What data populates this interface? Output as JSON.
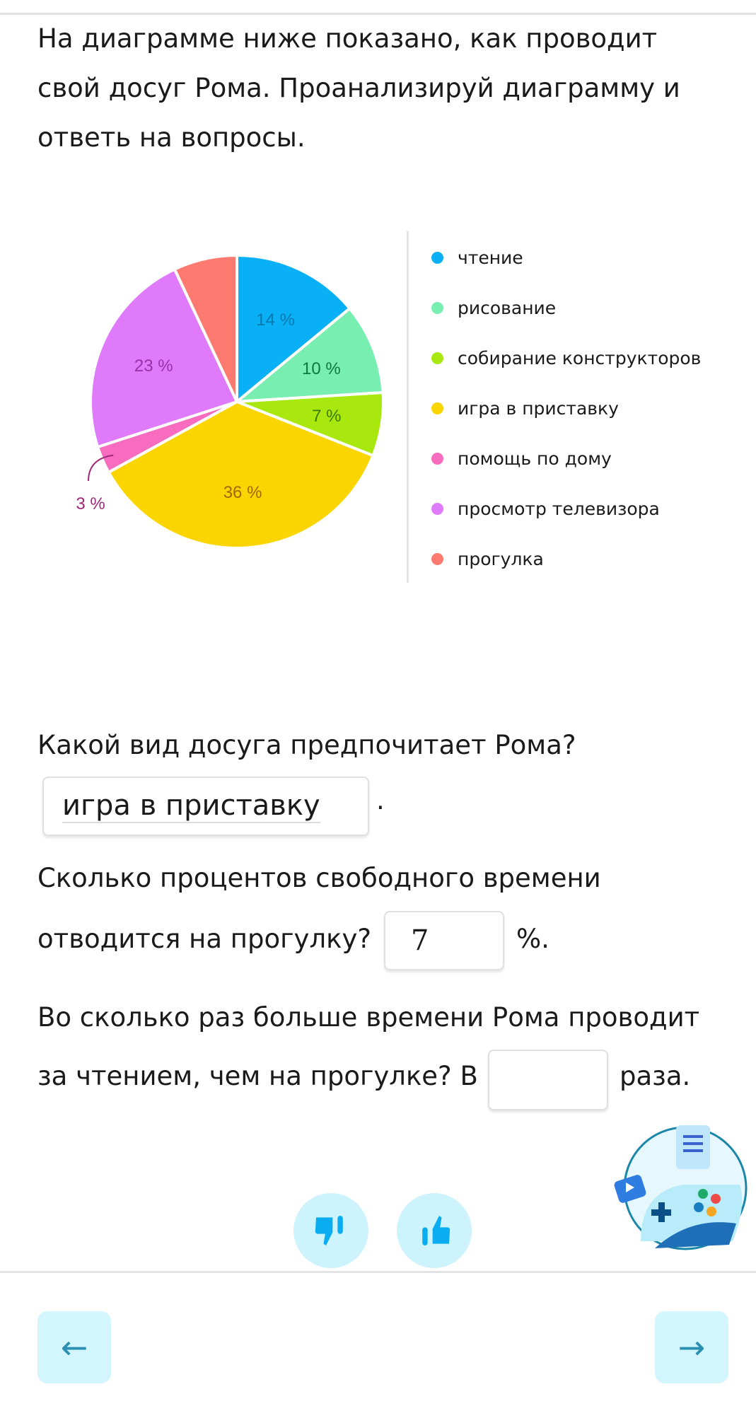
{
  "intro": [
    "На диаграмме ниже показано, как проводит",
    "свой досуг Рома. Проанализируй диаграмму и",
    "ответь на вопросы."
  ],
  "chart_data": {
    "type": "pie",
    "categories": [
      "чтение",
      "рисование",
      "собирание конструкторов",
      "игра в приставку",
      "помощь по дому",
      "просмотр телевизора",
      "прогулка"
    ],
    "values": [
      14,
      10,
      7,
      36,
      3,
      23,
      7
    ],
    "labels": [
      "14 %",
      "10 %",
      "7 %",
      "36 %",
      "3 %",
      "23 %",
      ""
    ],
    "colors": [
      "#0ab0f5",
      "#78eeb0",
      "#a8e80e",
      "#fad500",
      "#f76cbf",
      "#df7bfa",
      "#fd7a70"
    ],
    "label_colors": [
      "#0a78b0",
      "#0e7a3a",
      "#3c7a00",
      "#a06a00",
      "#a0287a",
      "#9a30a8",
      ""
    ],
    "legend": "right"
  },
  "q1": {
    "text": "Какой вид досуга предпочитает Рома?",
    "answer": "игра в приставку",
    "suffix": "."
  },
  "q2": {
    "line1": "Сколько процентов свободного времени",
    "line2": "отводится на прогулку?",
    "answer": "7",
    "suffix": "%."
  },
  "q3": {
    "line1": "Во сколько раз больше времени Рома проводит",
    "line2": "за чтением, чем на прогулке? В",
    "answer": "",
    "suffix": "раза."
  },
  "nav": {
    "back": "←",
    "next": "→"
  }
}
